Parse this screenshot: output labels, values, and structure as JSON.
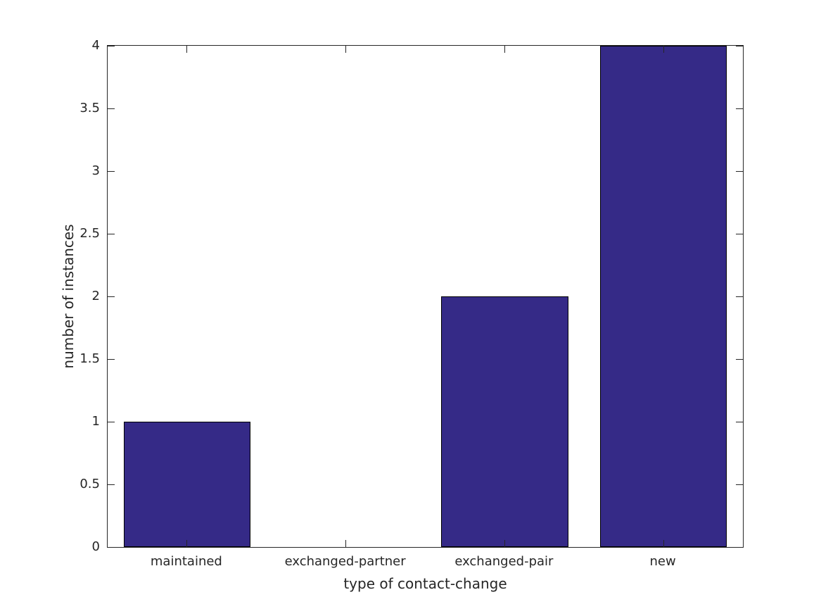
{
  "chart_data": {
    "type": "bar",
    "title": "",
    "xlabel": "type of contact-change",
    "ylabel": "number of instances",
    "categories": [
      "maintained",
      "exchanged-partner",
      "exchanged-pair",
      "new"
    ],
    "values": [
      1,
      0,
      2,
      4
    ],
    "ylim": [
      0,
      4
    ],
    "yticks": [
      0,
      0.5,
      1,
      1.5,
      2,
      2.5,
      3,
      3.5,
      4
    ],
    "ytick_labels": [
      "0",
      "0.5",
      "1",
      "1.5",
      "2",
      "2.5",
      "3",
      "3.5",
      "4"
    ],
    "bar_width_fraction": 0.8,
    "bar_color": "#352A87",
    "bar_edge_color": "#000000",
    "axis_color": "#262626",
    "background_color": "#ffffff",
    "grid": false,
    "legend": null,
    "tick_direction": "in",
    "box": true
  }
}
